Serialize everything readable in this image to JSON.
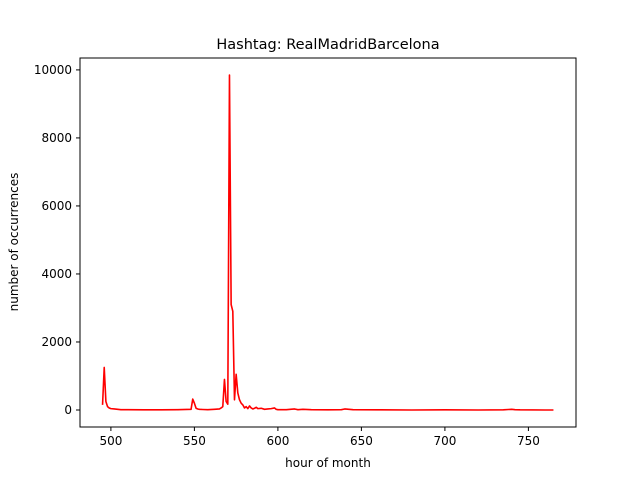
{
  "chart_data": {
    "type": "line",
    "title": "Hashtag: RealMadridBarcelona",
    "xlabel": "hour of month",
    "ylabel": "number of occurrences",
    "xlim": [
      481.5,
      778.5
    ],
    "ylim": [
      -500,
      10350
    ],
    "xticks": [
      500,
      550,
      600,
      650,
      700,
      750
    ],
    "yticks": [
      0,
      2000,
      4000,
      6000,
      8000,
      10000
    ],
    "grid": false,
    "series": [
      {
        "color": "#ff0000",
        "x": [
          495,
          496,
          497,
          498,
          499,
          500,
          502,
          504,
          506,
          510,
          520,
          530,
          540,
          548,
          549,
          550,
          551,
          552,
          553,
          555,
          558,
          562,
          565,
          566,
          567,
          568,
          569,
          570,
          571,
          572,
          573,
          574,
          575,
          576,
          577,
          578,
          579,
          580,
          581,
          582,
          583,
          584,
          585,
          586,
          587,
          588,
          590,
          592,
          594,
          596,
          598,
          599,
          600,
          605,
          610,
          612,
          615,
          620,
          630,
          638,
          640,
          645,
          660,
          680,
          700,
          720,
          735,
          738,
          740,
          742,
          745,
          760,
          765
        ],
        "y": [
          150,
          1250,
          250,
          100,
          60,
          40,
          30,
          20,
          10,
          10,
          5,
          5,
          10,
          20,
          320,
          200,
          50,
          30,
          20,
          15,
          10,
          20,
          30,
          60,
          100,
          900,
          250,
          170,
          9850,
          3100,
          2900,
          300,
          1050,
          500,
          300,
          200,
          150,
          60,
          100,
          40,
          120,
          60,
          30,
          50,
          80,
          40,
          50,
          20,
          30,
          40,
          60,
          20,
          10,
          10,
          30,
          10,
          20,
          10,
          5,
          10,
          30,
          10,
          5,
          0,
          5,
          0,
          5,
          15,
          20,
          10,
          5,
          0,
          0
        ]
      }
    ]
  }
}
